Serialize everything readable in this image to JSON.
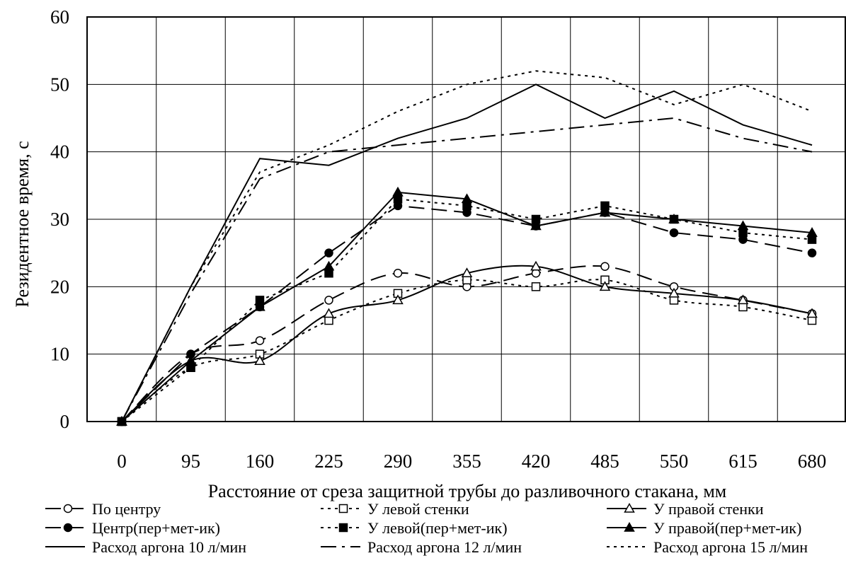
{
  "chart_data": {
    "type": "line",
    "title": "",
    "xlabel": "Расстояние от среза защитной трубы  до разливочного стакана, мм",
    "ylabel": "Резидентное время, с",
    "categories": [
      "0",
      "95",
      "160",
      "225",
      "290",
      "355",
      "420",
      "485",
      "550",
      "615",
      "680"
    ],
    "ylim": [
      0,
      60
    ],
    "yticks": [
      0,
      10,
      20,
      30,
      40,
      50,
      60
    ],
    "grid": true,
    "legend_position": "bottom",
    "series": [
      {
        "name": "По центру",
        "values": [
          0,
          10,
          12,
          18,
          22,
          20,
          22,
          23,
          20,
          18,
          16
        ],
        "line": "longdash",
        "marker": "circle-open",
        "smooth": true
      },
      {
        "name": "У левой стенки",
        "values": [
          0,
          8,
          10,
          15,
          19,
          21,
          20,
          21,
          18,
          17,
          15
        ],
        "line": "dotted",
        "marker": "square-open",
        "smooth": true
      },
      {
        "name": "У правой стенки",
        "values": [
          0,
          9,
          9,
          16,
          18,
          22,
          23,
          20,
          19,
          18,
          16
        ],
        "line": "solid",
        "marker": "triangle-open",
        "smooth": true
      },
      {
        "name": "Центр(пер+мет-ик)",
        "values": [
          0,
          10,
          17,
          25,
          32,
          31,
          29,
          31,
          28,
          27,
          25
        ],
        "line": "longdash",
        "marker": "circle-filled",
        "smooth": false
      },
      {
        "name": "У левой(пер+мет-ик)",
        "values": [
          0,
          8,
          18,
          22,
          33,
          32,
          30,
          32,
          30,
          28,
          27
        ],
        "line": "dotted",
        "marker": "square-filled",
        "smooth": false
      },
      {
        "name": "У правой(пер+мет-ик)",
        "values": [
          0,
          9,
          17,
          23,
          34,
          33,
          29,
          31,
          30,
          29,
          28
        ],
        "line": "solid",
        "marker": "triangle-filled",
        "smooth": false
      },
      {
        "name": "Расход аргона 10 л/мин",
        "values": [
          0,
          20,
          39,
          38,
          42,
          45,
          50,
          45,
          49,
          44,
          41
        ],
        "line": "solid",
        "marker": "none",
        "smooth": false
      },
      {
        "name": "Расход аргона 12 л/мин",
        "values": [
          0,
          19,
          36,
          40,
          41,
          42,
          43,
          44,
          45,
          42,
          40
        ],
        "line": "dashdot",
        "marker": "none",
        "smooth": false
      },
      {
        "name": "Расход аргона 15 л/мин",
        "values": [
          0,
          20,
          37,
          41,
          46,
          50,
          52,
          51,
          47,
          50,
          46
        ],
        "line": "dotted",
        "marker": "none",
        "smooth": false
      }
    ]
  }
}
